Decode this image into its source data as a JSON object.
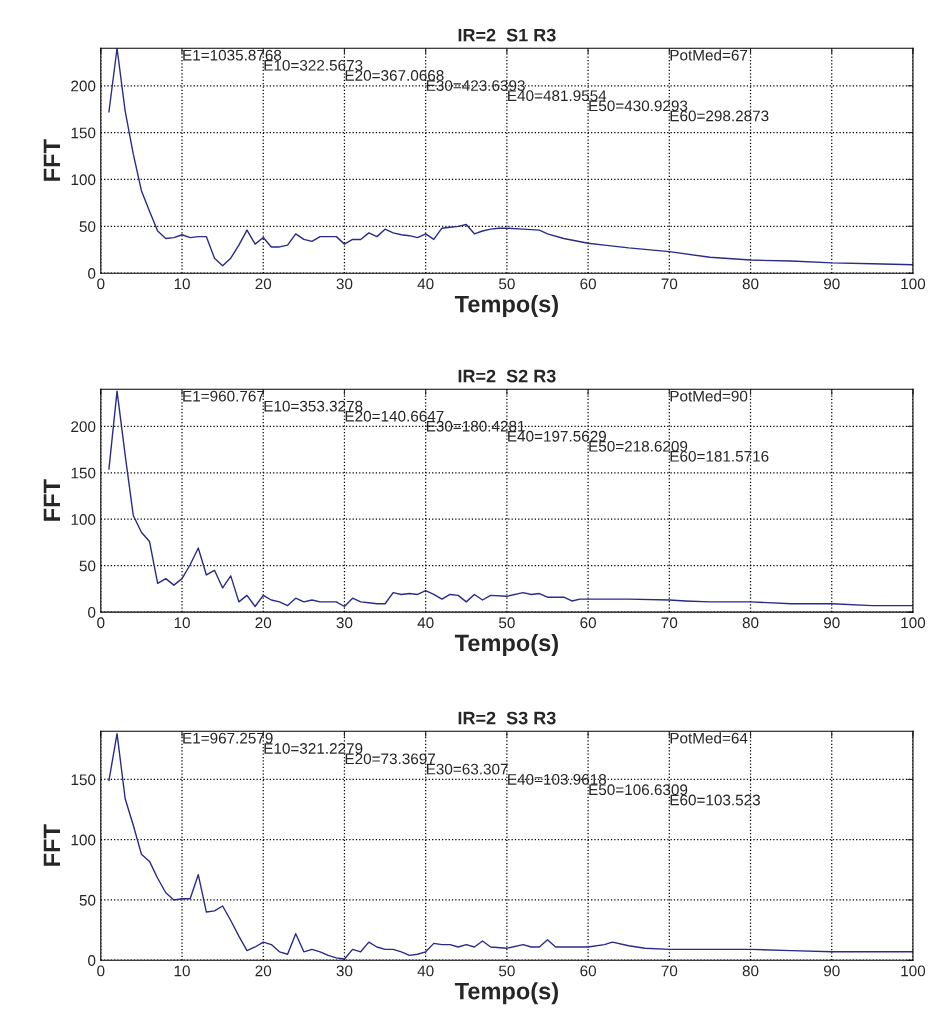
{
  "chart_data": [
    {
      "type": "line",
      "title": "IR=2  S1 R3",
      "xlabel": "Tempo(s)",
      "ylabel": "FFT",
      "xlim": [
        0,
        100
      ],
      "xticks": [
        0,
        10,
        20,
        30,
        40,
        50,
        60,
        70,
        80,
        90,
        100
      ],
      "ylim": [
        0,
        240
      ],
      "yticks": [
        0,
        50,
        100,
        150,
        200
      ],
      "grid": true,
      "line_style": "solid",
      "marker": "none",
      "annotations": [
        "E1=1035.8768",
        "E10=322.5673",
        "E20=367.0668",
        "E30=423.6393",
        "E40=481.9554",
        "E50=430.9293",
        "E60=298.2873",
        "PotMed=67"
      ],
      "series": [
        {
          "color": "#2a2a8a",
          "x": [
            1,
            2,
            3,
            4,
            5,
            6,
            7,
            8,
            9,
            10,
            11,
            12,
            13,
            14,
            15,
            16,
            17,
            18,
            19,
            20,
            21,
            22,
            23,
            24,
            25,
            26,
            27,
            28,
            29,
            30,
            31,
            32,
            33,
            34,
            35,
            36,
            37,
            38,
            39,
            40,
            41,
            42,
            43,
            44,
            45,
            46,
            47,
            48,
            49,
            50,
            52,
            54,
            55,
            57,
            60,
            62,
            65,
            70,
            75,
            80,
            85,
            90,
            95,
            100
          ],
          "values": [
            172,
            240,
            173,
            127,
            88,
            66,
            45,
            37,
            38,
            41,
            38,
            39,
            39,
            16,
            8,
            16,
            30,
            46,
            31,
            38,
            28,
            28,
            30,
            42,
            36,
            34,
            39,
            39,
            39,
            31,
            36,
            36,
            43,
            39,
            47,
            43,
            41,
            40,
            38,
            42,
            36,
            48,
            49,
            50,
            52,
            42,
            45,
            47,
            48,
            48,
            47,
            46,
            42,
            37,
            32,
            30,
            27,
            23,
            17,
            14,
            13,
            11,
            10,
            9
          ]
        }
      ]
    },
    {
      "type": "line",
      "title": "IR=2  S2 R3",
      "xlabel": "Tempo(s)",
      "ylabel": "FFT",
      "xlim": [
        0,
        100
      ],
      "xticks": [
        0,
        10,
        20,
        30,
        40,
        50,
        60,
        70,
        80,
        90,
        100
      ],
      "ylim": [
        0,
        240
      ],
      "yticks": [
        0,
        50,
        100,
        150,
        200
      ],
      "grid": true,
      "line_style": "solid",
      "marker": "none",
      "annotations": [
        "E1=960.767",
        "E10=353.3278",
        "E20=140.6647",
        "E30=180.4281",
        "E40=197.5629",
        "E50=218.6209",
        "E60=181.5716",
        "PotMed=90"
      ],
      "series": [
        {
          "color": "#2a2a8a",
          "x": [
            1,
            2,
            3,
            4,
            5,
            6,
            7,
            8,
            9,
            10,
            11,
            12,
            13,
            14,
            15,
            16,
            17,
            18,
            19,
            20,
            21,
            22,
            23,
            24,
            25,
            26,
            27,
            28,
            29,
            30,
            31,
            32,
            33,
            34,
            35,
            36,
            37,
            38,
            39,
            40,
            41,
            42,
            43,
            44,
            45,
            46,
            47,
            48,
            50,
            52,
            53,
            54,
            55,
            57,
            58,
            59,
            61,
            62,
            65,
            70,
            72,
            75,
            80,
            85,
            90,
            95,
            100
          ],
          "values": [
            154,
            238,
            169,
            104,
            86,
            76,
            31,
            36,
            29,
            36,
            51,
            69,
            40,
            45,
            26,
            39,
            11,
            18,
            6,
            18,
            13,
            11,
            7,
            15,
            11,
            13,
            11,
            11,
            11,
            6,
            15,
            11,
            10,
            9,
            9,
            21,
            19,
            20,
            19,
            23,
            19,
            14,
            19,
            18,
            11,
            19,
            13,
            18,
            17,
            21,
            19,
            20,
            16,
            16,
            12,
            14,
            14,
            14,
            14,
            13,
            12,
            11,
            11,
            9,
            9,
            7,
            7
          ]
        }
      ]
    },
    {
      "type": "line",
      "title": "IR=2  S3 R3",
      "xlabel": "Tempo(s)",
      "ylabel": "FFT",
      "xlim": [
        0,
        100
      ],
      "xticks": [
        0,
        10,
        20,
        30,
        40,
        50,
        60,
        70,
        80,
        90,
        100
      ],
      "ylim": [
        0,
        190
      ],
      "yticks": [
        0,
        50,
        100,
        150
      ],
      "grid": true,
      "line_style": "solid",
      "marker": "none",
      "annotations": [
        "E1=967.2579",
        "E10=321.2279",
        "E20=73.3697",
        "E30=63.307",
        "E40=103.9618",
        "E50=106.6309",
        "E60=103.523",
        "PotMed=64"
      ],
      "series": [
        {
          "color": "#2a2a8a",
          "x": [
            1,
            2,
            3,
            4,
            5,
            6,
            7,
            8,
            9,
            10,
            11,
            12,
            13,
            14,
            15,
            16,
            17,
            18,
            19,
            20,
            21,
            22,
            23,
            24,
            25,
            26,
            27,
            28,
            29,
            30,
            31,
            32,
            33,
            34,
            35,
            36,
            37,
            38,
            39,
            40,
            41,
            42,
            43,
            44,
            45,
            46,
            47,
            48,
            50,
            52,
            53,
            54,
            55,
            56,
            58,
            60,
            62,
            63,
            65,
            67,
            70,
            72,
            75,
            80,
            85,
            90,
            95,
            100
          ],
          "values": [
            149,
            188,
            134,
            112,
            88,
            82,
            68,
            56,
            50,
            51,
            51,
            71,
            40,
            41,
            45,
            33,
            20,
            8,
            11,
            15,
            13,
            7,
            5,
            22,
            7,
            9,
            7,
            4,
            2,
            1,
            9,
            7,
            15,
            11,
            9,
            9,
            7,
            4,
            5,
            7,
            14,
            13,
            13,
            11,
            13,
            11,
            16,
            11,
            10,
            13,
            11,
            11,
            17,
            11,
            11,
            11,
            13,
            15,
            12,
            10,
            9,
            9,
            9,
            9,
            8,
            7,
            7,
            7
          ]
        }
      ]
    }
  ]
}
